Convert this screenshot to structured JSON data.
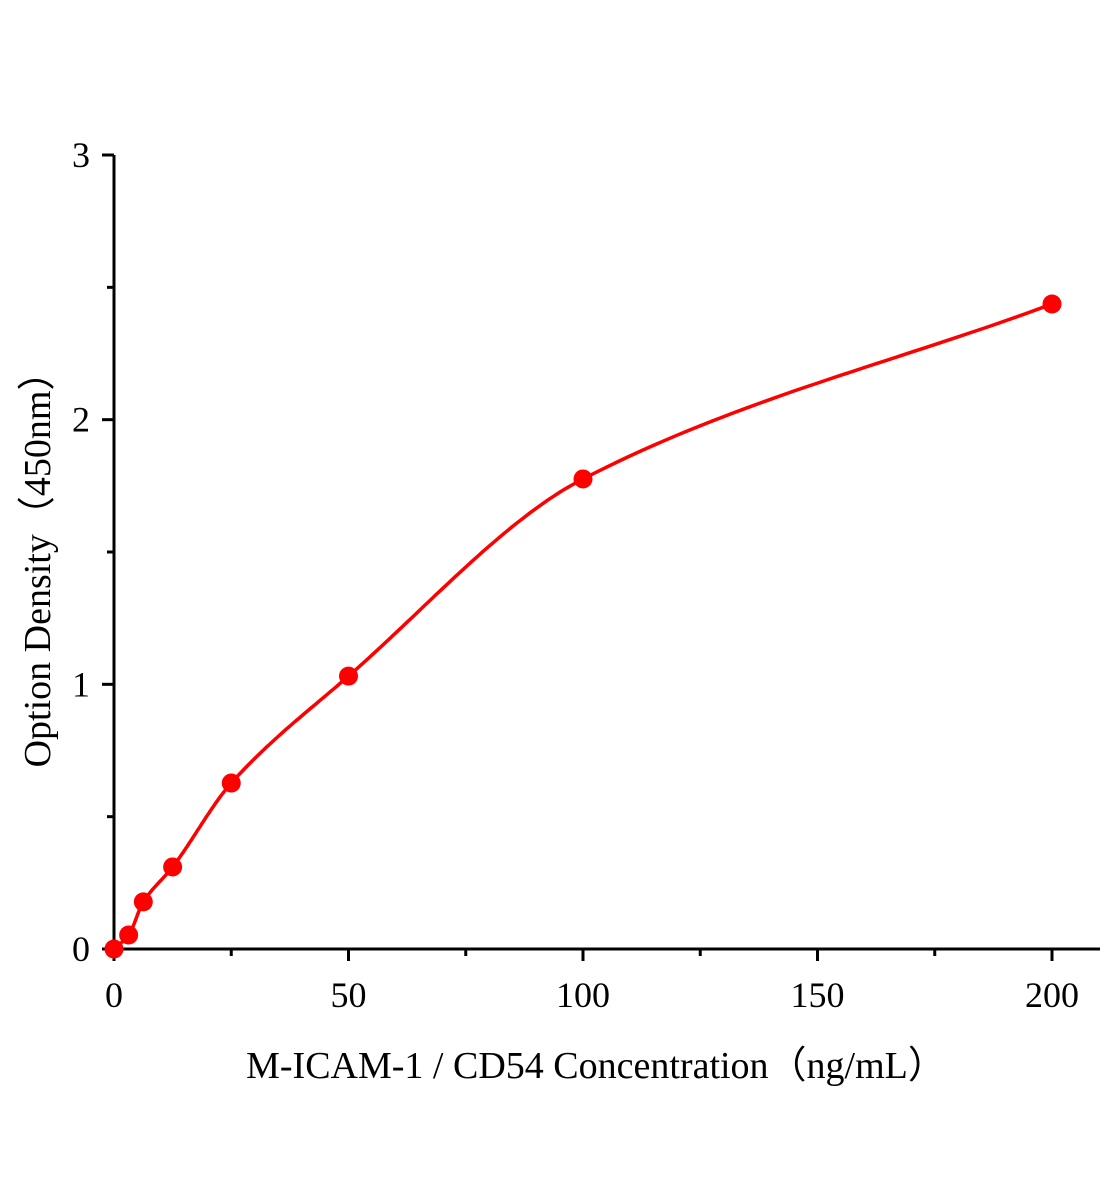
{
  "chart_data": {
    "type": "scatter",
    "title": "",
    "xlabel": "M-ICAM-1 / CD54 Concentration（ng/mL）",
    "ylabel": "Option Density（450nm）",
    "xlim": [
      0,
      210
    ],
    "ylim": [
      0,
      3
    ],
    "x_ticks": [
      0,
      50,
      100,
      150,
      200
    ],
    "x_tick_labels": [
      "0",
      "50",
      "100",
      "150",
      "200"
    ],
    "x_minor_ticks": [
      25,
      75,
      125,
      175
    ],
    "y_ticks": [
      0,
      1,
      2,
      3
    ],
    "y_tick_labels": [
      "0",
      "1",
      "2",
      "3"
    ],
    "y_minor_ticks": [
      0.5,
      1.5,
      2.5
    ],
    "grid": false,
    "series": [
      {
        "x": [
          0,
          3.125,
          6.25,
          12.5,
          25,
          50,
          100,
          200
        ],
        "y": [
          0.0,
          0.053,
          0.178,
          0.31,
          0.627,
          1.031,
          1.776,
          2.437
        ],
        "marker": "circle",
        "fit_line": "smooth curve",
        "color": "#ff0000"
      }
    ]
  }
}
